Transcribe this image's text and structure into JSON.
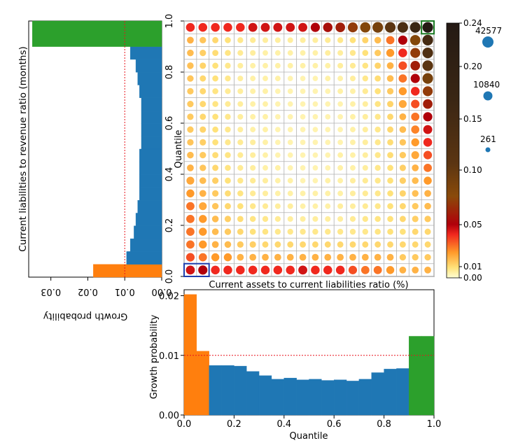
{
  "colors": {
    "orange": "#ff7f0e",
    "blue": "#1f77b4",
    "green": "#2ca02c",
    "ref_line": "#e8141b",
    "highlight_low": "#1f3fae",
    "highlight_high": "#1a7a22",
    "grid": "#b0b0b0"
  },
  "chart_data": [
    {
      "type": "heatmap",
      "name": "quantile-scatter-matrix",
      "xlabel": "Current assets to current liabilities ratio (%)",
      "ylabel": "Quantile",
      "ylim": [
        0,
        1
      ],
      "yticks": [
        "0.0",
        "0.2",
        "0.4",
        "0.6",
        "0.8",
        "1.0"
      ],
      "grid_size": 20,
      "cells_note": "growth probability per (x-quantile, y-quantile) bin, encoded by colour and marker size; estimated visually",
      "row_values_bottom_to_top": [
        [
          0.045,
          0.05,
          0.04,
          0.04,
          0.04,
          0.04,
          0.04,
          0.04,
          0.04,
          0.045,
          0.04,
          0.04,
          0.04,
          0.035,
          0.03,
          0.03,
          0.025,
          0.02,
          0.02,
          0.02
        ],
        [
          0.035,
          0.03,
          0.025,
          0.025,
          0.02,
          0.02,
          0.02,
          0.02,
          0.02,
          0.02,
          0.02,
          0.02,
          0.02,
          0.02,
          0.02,
          0.02,
          0.02,
          0.015,
          0.015,
          0.015
        ],
        [
          0.03,
          0.025,
          0.02,
          0.018,
          0.015,
          0.014,
          0.012,
          0.012,
          0.012,
          0.012,
          0.012,
          0.012,
          0.012,
          0.012,
          0.012,
          0.012,
          0.012,
          0.012,
          0.012,
          0.012
        ],
        [
          0.03,
          0.025,
          0.018,
          0.015,
          0.012,
          0.01,
          0.009,
          0.008,
          0.008,
          0.008,
          0.008,
          0.008,
          0.008,
          0.008,
          0.008,
          0.009,
          0.01,
          0.01,
          0.012,
          0.012
        ],
        [
          0.03,
          0.025,
          0.018,
          0.014,
          0.011,
          0.009,
          0.008,
          0.007,
          0.006,
          0.006,
          0.006,
          0.006,
          0.006,
          0.007,
          0.008,
          0.009,
          0.01,
          0.012,
          0.014,
          0.015
        ],
        [
          0.03,
          0.022,
          0.016,
          0.012,
          0.01,
          0.008,
          0.007,
          0.006,
          0.006,
          0.005,
          0.005,
          0.005,
          0.006,
          0.006,
          0.007,
          0.008,
          0.01,
          0.012,
          0.015,
          0.018
        ],
        [
          0.025,
          0.02,
          0.015,
          0.011,
          0.009,
          0.007,
          0.006,
          0.005,
          0.005,
          0.005,
          0.005,
          0.005,
          0.005,
          0.006,
          0.007,
          0.008,
          0.01,
          0.013,
          0.017,
          0.02
        ],
        [
          0.022,
          0.018,
          0.014,
          0.01,
          0.008,
          0.007,
          0.006,
          0.005,
          0.005,
          0.004,
          0.004,
          0.005,
          0.005,
          0.006,
          0.007,
          0.008,
          0.01,
          0.014,
          0.018,
          0.025
        ],
        [
          0.02,
          0.016,
          0.012,
          0.009,
          0.007,
          0.006,
          0.005,
          0.005,
          0.004,
          0.004,
          0.004,
          0.004,
          0.005,
          0.005,
          0.006,
          0.008,
          0.01,
          0.014,
          0.02,
          0.03
        ],
        [
          0.018,
          0.015,
          0.011,
          0.009,
          0.007,
          0.006,
          0.005,
          0.004,
          0.004,
          0.004,
          0.004,
          0.004,
          0.005,
          0.005,
          0.006,
          0.008,
          0.011,
          0.015,
          0.022,
          0.035
        ],
        [
          0.016,
          0.014,
          0.01,
          0.008,
          0.007,
          0.006,
          0.005,
          0.004,
          0.004,
          0.004,
          0.004,
          0.004,
          0.004,
          0.005,
          0.006,
          0.008,
          0.011,
          0.016,
          0.025,
          0.04
        ],
        [
          0.015,
          0.013,
          0.01,
          0.008,
          0.006,
          0.005,
          0.005,
          0.004,
          0.004,
          0.004,
          0.004,
          0.004,
          0.004,
          0.005,
          0.006,
          0.008,
          0.012,
          0.018,
          0.028,
          0.045
        ],
        [
          0.015,
          0.012,
          0.01,
          0.008,
          0.006,
          0.005,
          0.005,
          0.004,
          0.004,
          0.004,
          0.004,
          0.004,
          0.004,
          0.005,
          0.006,
          0.008,
          0.012,
          0.02,
          0.03,
          0.05
        ],
        [
          0.015,
          0.012,
          0.009,
          0.007,
          0.006,
          0.005,
          0.005,
          0.004,
          0.004,
          0.004,
          0.004,
          0.004,
          0.004,
          0.005,
          0.006,
          0.009,
          0.013,
          0.022,
          0.035,
          0.06
        ],
        [
          0.015,
          0.012,
          0.009,
          0.007,
          0.006,
          0.005,
          0.005,
          0.004,
          0.004,
          0.004,
          0.004,
          0.004,
          0.005,
          0.005,
          0.007,
          0.01,
          0.015,
          0.025,
          0.04,
          0.07
        ],
        [
          0.016,
          0.012,
          0.01,
          0.008,
          0.006,
          0.005,
          0.005,
          0.005,
          0.004,
          0.004,
          0.004,
          0.005,
          0.005,
          0.006,
          0.008,
          0.011,
          0.018,
          0.03,
          0.05,
          0.09
        ],
        [
          0.017,
          0.013,
          0.01,
          0.008,
          0.006,
          0.005,
          0.005,
          0.005,
          0.005,
          0.005,
          0.005,
          0.005,
          0.006,
          0.007,
          0.009,
          0.013,
          0.02,
          0.035,
          0.06,
          0.11
        ],
        [
          0.018,
          0.014,
          0.011,
          0.009,
          0.007,
          0.006,
          0.005,
          0.005,
          0.005,
          0.005,
          0.005,
          0.006,
          0.006,
          0.008,
          0.01,
          0.015,
          0.025,
          0.04,
          0.07,
          0.13
        ],
        [
          0.02,
          0.016,
          0.012,
          0.01,
          0.008,
          0.007,
          0.006,
          0.006,
          0.006,
          0.006,
          0.006,
          0.007,
          0.008,
          0.01,
          0.013,
          0.018,
          0.03,
          0.05,
          0.08,
          0.15
        ],
        [
          0.04,
          0.04,
          0.04,
          0.04,
          0.04,
          0.045,
          0.045,
          0.045,
          0.045,
          0.045,
          0.05,
          0.055,
          0.06,
          0.07,
          0.08,
          0.09,
          0.11,
          0.14,
          0.17,
          0.24
        ]
      ],
      "highlights": [
        {
          "name": "low-low",
          "x_bin": 0,
          "x_bin_to": 1,
          "y_bin": 0
        },
        {
          "name": "high-high",
          "x_bin": 19,
          "x_bin_to": 19,
          "y_bin": 19
        }
      ],
      "colorbar": {
        "ticks": [
          "0.00",
          "0.01",
          "0.05",
          "0.10",
          "0.15",
          "0.20",
          "0.24"
        ],
        "tick_values": [
          0.0,
          0.01,
          0.05,
          0.1,
          0.15,
          0.2,
          0.24
        ],
        "range": [
          0,
          0.24
        ]
      },
      "size_legend": {
        "labels": [
          "42577",
          "10840",
          "261"
        ],
        "counts": [
          42577,
          10840,
          261
        ]
      }
    },
    {
      "type": "bar",
      "name": "left-marginal-histogram",
      "orientation": "horizontal",
      "xlabel": "Growth probability",
      "ylabel": "Current liabilities to revenue ratio (months)",
      "xlim": [
        0.036,
        0
      ],
      "xticks": [
        "0.03",
        "0.02",
        "0.01",
        "0.00"
      ],
      "ylim": [
        0,
        1
      ],
      "reference_value": 0.01,
      "bins": [
        {
          "from": 0.0,
          "to": 0.05,
          "value": 0.0185,
          "group": "low"
        },
        {
          "from": 0.05,
          "to": 0.1,
          "value": 0.0095,
          "group": "mid"
        },
        {
          "from": 0.1,
          "to": 0.15,
          "value": 0.0085,
          "group": "mid"
        },
        {
          "from": 0.15,
          "to": 0.2,
          "value": 0.0075,
          "group": "mid"
        },
        {
          "from": 0.2,
          "to": 0.25,
          "value": 0.007,
          "group": "mid"
        },
        {
          "from": 0.25,
          "to": 0.3,
          "value": 0.0065,
          "group": "mid"
        },
        {
          "from": 0.3,
          "to": 0.35,
          "value": 0.006,
          "group": "mid"
        },
        {
          "from": 0.35,
          "to": 0.4,
          "value": 0.006,
          "group": "mid"
        },
        {
          "from": 0.4,
          "to": 0.45,
          "value": 0.006,
          "group": "mid"
        },
        {
          "from": 0.45,
          "to": 0.5,
          "value": 0.006,
          "group": "mid"
        },
        {
          "from": 0.5,
          "to": 0.55,
          "value": 0.0055,
          "group": "mid"
        },
        {
          "from": 0.55,
          "to": 0.6,
          "value": 0.0055,
          "group": "mid"
        },
        {
          "from": 0.6,
          "to": 0.65,
          "value": 0.0055,
          "group": "mid"
        },
        {
          "from": 0.65,
          "to": 0.7,
          "value": 0.0055,
          "group": "mid"
        },
        {
          "from": 0.7,
          "to": 0.75,
          "value": 0.006,
          "group": "mid"
        },
        {
          "from": 0.75,
          "to": 0.8,
          "value": 0.0065,
          "group": "mid"
        },
        {
          "from": 0.8,
          "to": 0.85,
          "value": 0.007,
          "group": "mid"
        },
        {
          "from": 0.85,
          "to": 0.9,
          "value": 0.0085,
          "group": "mid"
        },
        {
          "from": 0.9,
          "to": 0.95,
          "value": 0.035,
          "group": "high"
        },
        {
          "from": 0.95,
          "to": 1.0,
          "value": 0.035,
          "group": "high"
        }
      ]
    },
    {
      "type": "bar",
      "name": "bottom-marginal-histogram",
      "xlabel": "Quantile",
      "ylabel": "Growth probability",
      "xlim": [
        0,
        1
      ],
      "ylim": [
        0,
        0.021
      ],
      "xticks": [
        "0.0",
        "0.2",
        "0.4",
        "0.6",
        "0.8",
        "1.0"
      ],
      "yticks": [
        "0.00",
        "0.01",
        "0.02"
      ],
      "reference_value": 0.01,
      "bins": [
        {
          "from": 0.0,
          "to": 0.05,
          "value": 0.0202,
          "group": "low"
        },
        {
          "from": 0.05,
          "to": 0.1,
          "value": 0.0107,
          "group": "low"
        },
        {
          "from": 0.1,
          "to": 0.15,
          "value": 0.0083,
          "group": "mid"
        },
        {
          "from": 0.15,
          "to": 0.2,
          "value": 0.0083,
          "group": "mid"
        },
        {
          "from": 0.2,
          "to": 0.25,
          "value": 0.0082,
          "group": "mid"
        },
        {
          "from": 0.25,
          "to": 0.3,
          "value": 0.0073,
          "group": "mid"
        },
        {
          "from": 0.3,
          "to": 0.35,
          "value": 0.0066,
          "group": "mid"
        },
        {
          "from": 0.35,
          "to": 0.4,
          "value": 0.006,
          "group": "mid"
        },
        {
          "from": 0.4,
          "to": 0.45,
          "value": 0.0062,
          "group": "mid"
        },
        {
          "from": 0.45,
          "to": 0.5,
          "value": 0.0059,
          "group": "mid"
        },
        {
          "from": 0.5,
          "to": 0.55,
          "value": 0.006,
          "group": "mid"
        },
        {
          "from": 0.55,
          "to": 0.6,
          "value": 0.0058,
          "group": "mid"
        },
        {
          "from": 0.6,
          "to": 0.65,
          "value": 0.0059,
          "group": "mid"
        },
        {
          "from": 0.65,
          "to": 0.7,
          "value": 0.0057,
          "group": "mid"
        },
        {
          "from": 0.7,
          "to": 0.75,
          "value": 0.006,
          "group": "mid"
        },
        {
          "from": 0.75,
          "to": 0.8,
          "value": 0.0071,
          "group": "mid"
        },
        {
          "from": 0.8,
          "to": 0.85,
          "value": 0.0077,
          "group": "mid"
        },
        {
          "from": 0.85,
          "to": 0.9,
          "value": 0.0078,
          "group": "mid"
        },
        {
          "from": 0.9,
          "to": 0.95,
          "value": 0.0132,
          "group": "high"
        },
        {
          "from": 0.95,
          "to": 1.0,
          "value": 0.0132,
          "group": "high"
        }
      ]
    }
  ]
}
